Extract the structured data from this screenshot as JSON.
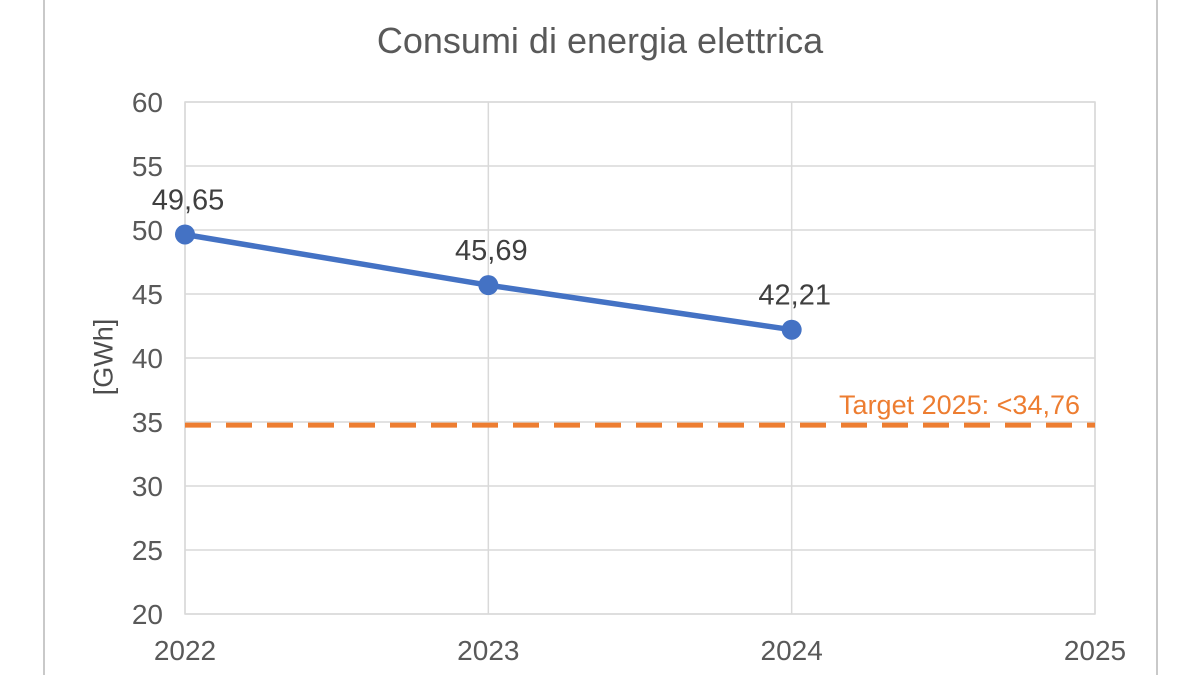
{
  "page": {
    "background": "#ffffff",
    "side_border_color": "#c9c9c9"
  },
  "chart_data": {
    "type": "line",
    "title": "Consumi di energia elettrica",
    "ylabel": "[GWh]",
    "xlabel": "",
    "categories": [
      2022,
      2023,
      2024
    ],
    "series": [
      {
        "name": "Consumi di energia elettrica",
        "values": [
          49.65,
          45.69,
          42.21
        ],
        "point_labels": [
          "49,65",
          "45,69",
          "42,21"
        ],
        "color": "#4472C4"
      }
    ],
    "target_line": {
      "value": 34.76,
      "label": "Target 2025: <34,76",
      "color": "#ED7D31",
      "style": "dashed"
    },
    "xticks": [
      2022,
      2023,
      2024,
      2025
    ],
    "yticks": [
      20,
      25,
      30,
      35,
      40,
      45,
      50,
      55,
      60
    ],
    "xlim": [
      2022,
      2025
    ],
    "ylim": [
      20,
      60
    ],
    "grid": true,
    "legend_position": "none",
    "colors": {
      "gridline": "#d9d9d9",
      "tick_label": "#595959",
      "title": "#595959",
      "axis_title": "#4d4d4d",
      "data_label": "#3f3f3f"
    }
  }
}
